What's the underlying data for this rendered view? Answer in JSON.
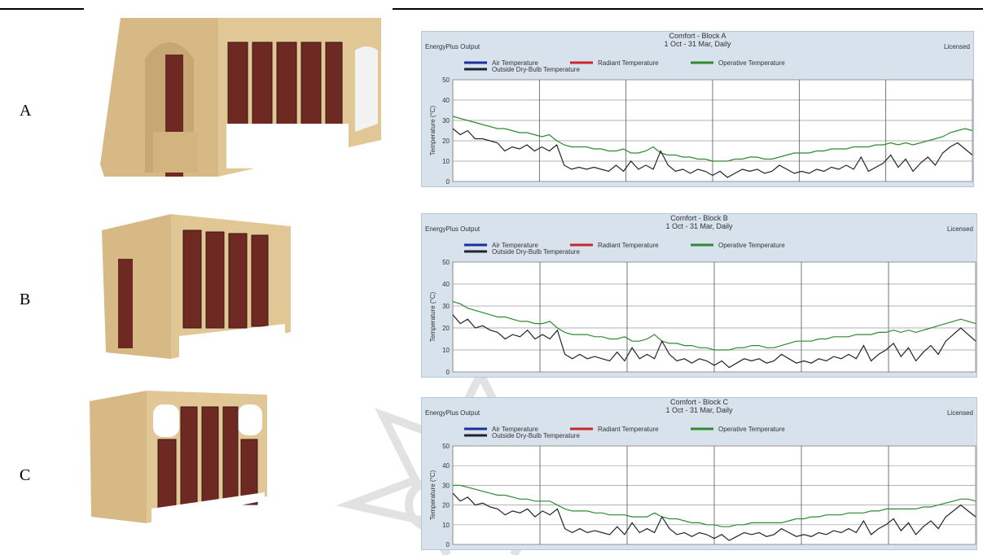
{
  "rows": [
    {
      "label": "A"
    },
    {
      "label": "B"
    },
    {
      "label": "C"
    }
  ],
  "chart_common": {
    "source": "EnergyPlus Output",
    "license": "Licensed",
    "period": "1 Oct - 31 Mar, Daily",
    "legend": [
      "Air Temperature",
      "Radiant Temperature",
      "Operative Temperature",
      "Outside Dry-Bulb Temperature"
    ],
    "ylabel": "Temperature (°C)"
  },
  "colors": {
    "air": "#1c2fa0",
    "radiant": "#c8262b",
    "operative": "#2f8a2f",
    "outside": "#222233",
    "panel": "#d7e2ec",
    "plot": "#ffffff",
    "wood": "#dcc08f",
    "door": "#6e2a22"
  },
  "chart_data": [
    {
      "type": "line",
      "title": "Comfort - Block A",
      "ylim": [
        0,
        50
      ],
      "yticks": [
        0,
        10,
        20,
        30,
        40,
        50
      ],
      "series": [
        {
          "name": "Operative Temperature",
          "values": [
            32,
            31,
            30,
            29,
            28,
            27,
            26,
            26,
            25,
            24,
            24,
            23,
            22,
            23,
            20,
            18,
            17,
            17,
            17,
            16,
            16,
            15,
            15,
            16,
            14,
            14,
            15,
            17,
            14,
            13,
            13,
            12,
            12,
            11,
            11,
            10,
            10,
            10,
            11,
            11,
            12,
            12,
            11,
            11,
            12,
            13,
            14,
            14,
            14,
            15,
            15,
            16,
            16,
            16,
            17,
            17,
            17,
            18,
            18,
            19,
            18,
            19,
            18,
            19,
            20,
            21,
            22,
            24,
            25,
            26,
            25
          ]
        },
        {
          "name": "Outside Dry-Bulb Temperature",
          "values": [
            26,
            23,
            25,
            21,
            21,
            20,
            19,
            15,
            17,
            16,
            18,
            15,
            17,
            15,
            18,
            8,
            6,
            7,
            6,
            7,
            6,
            5,
            8,
            5,
            10,
            6,
            8,
            6,
            15,
            8,
            5,
            6,
            4,
            6,
            5,
            3,
            5,
            2,
            4,
            6,
            5,
            6,
            4,
            5,
            8,
            6,
            4,
            5,
            4,
            6,
            5,
            7,
            6,
            8,
            6,
            12,
            5,
            7,
            9,
            13,
            7,
            11,
            5,
            9,
            12,
            8,
            14,
            17,
            19,
            16,
            13
          ]
        }
      ]
    },
    {
      "type": "line",
      "title": "Comfort - Block B",
      "ylim": [
        0,
        50
      ],
      "yticks": [
        0,
        10,
        20,
        30,
        40,
        50
      ],
      "series": [
        {
          "name": "Operative Temperature",
          "values": [
            32,
            31,
            29,
            28,
            27,
            26,
            25,
            25,
            24,
            23,
            23,
            22,
            22,
            23,
            20,
            18,
            17,
            17,
            17,
            16,
            16,
            15,
            15,
            16,
            14,
            14,
            15,
            17,
            14,
            13,
            13,
            12,
            12,
            11,
            11,
            10,
            10,
            10,
            11,
            11,
            12,
            12,
            11,
            11,
            12,
            13,
            14,
            14,
            14,
            15,
            15,
            16,
            16,
            16,
            17,
            17,
            17,
            18,
            18,
            19,
            18,
            19,
            18,
            19,
            20,
            21,
            22,
            23,
            24,
            23,
            22
          ]
        },
        {
          "name": "Outside Dry-Bulb Temperature",
          "values": [
            26,
            22,
            24,
            20,
            21,
            19,
            18,
            15,
            17,
            16,
            19,
            15,
            17,
            15,
            19,
            8,
            6,
            8,
            6,
            7,
            6,
            5,
            9,
            5,
            11,
            6,
            8,
            6,
            14,
            8,
            5,
            6,
            4,
            6,
            5,
            3,
            5,
            2,
            4,
            6,
            5,
            6,
            4,
            5,
            8,
            6,
            4,
            5,
            4,
            6,
            5,
            7,
            6,
            8,
            6,
            12,
            5,
            8,
            10,
            13,
            7,
            11,
            5,
            9,
            12,
            8,
            14,
            17,
            20,
            17,
            14
          ]
        }
      ]
    },
    {
      "type": "line",
      "title": "Comfort - Block C",
      "ylim": [
        0,
        50
      ],
      "yticks": [
        0,
        10,
        20,
        30,
        40,
        50
      ],
      "series": [
        {
          "name": "Operative Temperature",
          "values": [
            30,
            30,
            29,
            28,
            27,
            26,
            25,
            25,
            24,
            23,
            23,
            22,
            22,
            22,
            20,
            18,
            17,
            17,
            17,
            16,
            16,
            15,
            15,
            15,
            14,
            14,
            14,
            16,
            14,
            13,
            13,
            12,
            11,
            11,
            10,
            10,
            9,
            9,
            10,
            10,
            11,
            11,
            11,
            11,
            11,
            12,
            13,
            13,
            14,
            14,
            15,
            15,
            15,
            16,
            16,
            16,
            17,
            17,
            18,
            18,
            18,
            18,
            18,
            19,
            19,
            20,
            21,
            22,
            23,
            23,
            22
          ]
        },
        {
          "name": "Outside Dry-Bulb Temperature",
          "values": [
            26,
            22,
            24,
            20,
            21,
            19,
            18,
            15,
            17,
            16,
            18,
            14,
            17,
            15,
            18,
            8,
            6,
            8,
            6,
            7,
            6,
            5,
            9,
            5,
            11,
            6,
            8,
            6,
            14,
            8,
            5,
            6,
            4,
            6,
            5,
            3,
            5,
            2,
            4,
            6,
            5,
            6,
            4,
            5,
            8,
            6,
            4,
            5,
            4,
            6,
            5,
            7,
            6,
            8,
            6,
            12,
            5,
            8,
            10,
            13,
            7,
            11,
            5,
            9,
            12,
            8,
            14,
            17,
            20,
            17,
            14
          ]
        }
      ]
    }
  ]
}
